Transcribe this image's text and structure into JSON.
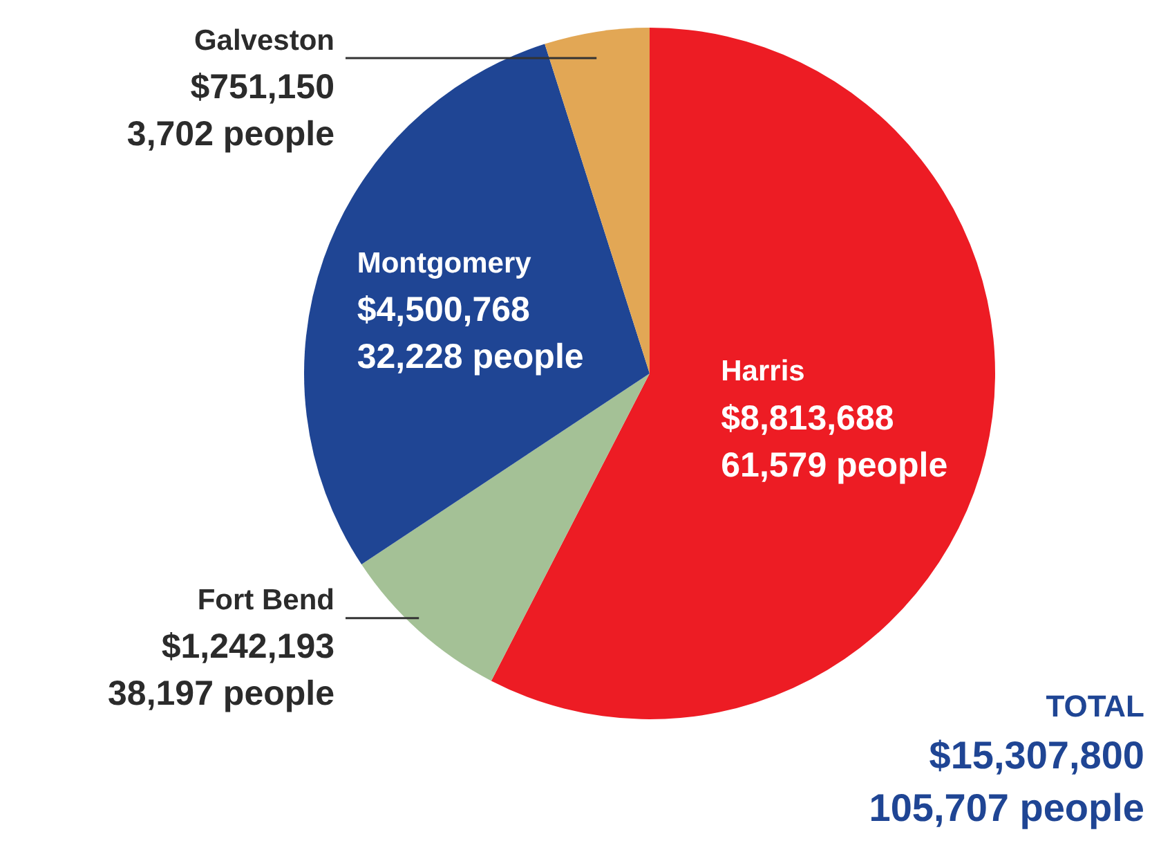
{
  "chart_data": {
    "type": "pie",
    "categories": [
      "Harris",
      "Fort Bend",
      "Montgomery",
      "Galveston"
    ],
    "values": [
      8813688,
      1242193,
      4500768,
      751150
    ],
    "colors": [
      "#ed1c24",
      "#a4c196",
      "#1f4594",
      "#e2a755"
    ],
    "value_labels": [
      "$8,813,688\n61,579 people",
      "$1,242,193\n38,197 people",
      "$4,500,768\n32,228 people",
      "$751,150\n3,702 people"
    ],
    "annotations": [
      "TOTAL\n$15,307,800\n105,707 people"
    ]
  }
}
